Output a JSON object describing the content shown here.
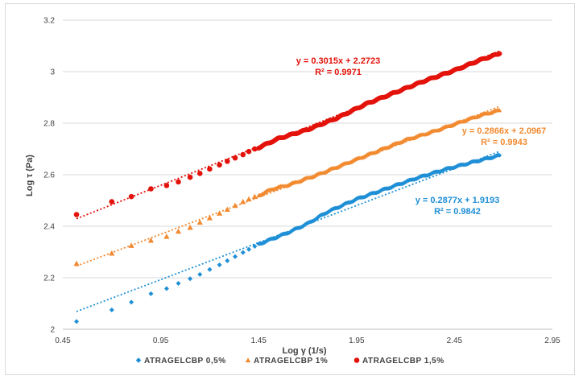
{
  "chart_data": {
    "type": "scatter",
    "title": "",
    "xlabel": "Log γ (1/s)",
    "ylabel": "Log τ (Pa)",
    "xlim": [
      0.45,
      2.95
    ],
    "ylim": [
      2.0,
      3.2
    ],
    "x_ticks": [
      "0.45",
      "0.95",
      "1.45",
      "1.95",
      "2.45",
      "2.95"
    ],
    "y_ticks": [
      "2",
      "2.2",
      "2.4",
      "2.6",
      "2.8",
      "3",
      "3.2"
    ],
    "legend_position": "bottom",
    "series": [
      {
        "name": "ATRAGELCBP 0,5%",
        "color": "#1f8fd6",
        "marker": "diamond",
        "trend": {
          "slope": 0.2877,
          "intercept": 1.9193,
          "x_range": [
            0.52,
            2.68
          ]
        },
        "equation": "y = 0.2877x + 1.9193",
        "r2": "R² = 0.9842",
        "points": [
          [
            0.52,
            2.03
          ],
          [
            0.7,
            2.075
          ],
          [
            0.8,
            2.105
          ],
          [
            0.9,
            2.138
          ],
          [
            0.98,
            2.158
          ],
          [
            1.04,
            2.178
          ],
          [
            1.1,
            2.196
          ],
          [
            1.15,
            2.213
          ],
          [
            1.2,
            2.232
          ],
          [
            1.25,
            2.25
          ],
          [
            1.29,
            2.266
          ],
          [
            1.33,
            2.282
          ],
          [
            1.37,
            2.298
          ],
          [
            1.4,
            2.31
          ],
          [
            1.43,
            2.322
          ]
        ],
        "dense": [
          [
            1.45,
            2.33
          ],
          [
            1.6,
            2.375
          ],
          [
            1.7,
            2.41
          ],
          [
            1.8,
            2.455
          ],
          [
            1.95,
            2.505
          ],
          [
            2.1,
            2.545
          ],
          [
            2.25,
            2.585
          ],
          [
            2.4,
            2.62
          ],
          [
            2.55,
            2.65
          ],
          [
            2.68,
            2.675
          ]
        ]
      },
      {
        "name": "ATRAGELCBP  1%",
        "color": "#f28a30",
        "marker": "triangle",
        "trend": {
          "slope": 0.2866,
          "intercept": 2.0967,
          "x_range": [
            0.52,
            2.68
          ]
        },
        "equation": "y = 0.2866x + 2.0967",
        "r2": "R² = 0.9943",
        "points": [
          [
            0.52,
            2.255
          ],
          [
            0.7,
            2.295
          ],
          [
            0.8,
            2.325
          ],
          [
            0.9,
            2.345
          ],
          [
            0.98,
            2.36
          ],
          [
            1.04,
            2.38
          ],
          [
            1.1,
            2.395
          ],
          [
            1.15,
            2.415
          ],
          [
            1.2,
            2.432
          ],
          [
            1.25,
            2.45
          ],
          [
            1.29,
            2.465
          ],
          [
            1.33,
            2.48
          ],
          [
            1.37,
            2.495
          ],
          [
            1.4,
            2.505
          ],
          [
            1.43,
            2.515
          ]
        ],
        "dense": [
          [
            1.45,
            2.52
          ],
          [
            1.52,
            2.545
          ],
          [
            1.6,
            2.56
          ],
          [
            1.75,
            2.6
          ],
          [
            1.9,
            2.645
          ],
          [
            2.05,
            2.69
          ],
          [
            2.2,
            2.735
          ],
          [
            2.35,
            2.77
          ],
          [
            2.5,
            2.81
          ],
          [
            2.6,
            2.835
          ],
          [
            2.68,
            2.85
          ]
        ]
      },
      {
        "name": "ATRAGELCBP 1,5%",
        "color": "#e3120b",
        "marker": "circle",
        "trend": {
          "slope": 0.3015,
          "intercept": 2.2723,
          "x_range": [
            0.52,
            2.68
          ]
        },
        "equation": "y = 0.3015x + 2.2723",
        "r2": "R² = 0.9971",
        "points": [
          [
            0.52,
            2.445
          ],
          [
            0.7,
            2.495
          ],
          [
            0.8,
            2.515
          ],
          [
            0.9,
            2.545
          ],
          [
            0.98,
            2.558
          ],
          [
            1.04,
            2.572
          ],
          [
            1.1,
            2.59
          ],
          [
            1.15,
            2.605
          ],
          [
            1.2,
            2.622
          ],
          [
            1.25,
            2.638
          ],
          [
            1.29,
            2.652
          ],
          [
            1.33,
            2.665
          ],
          [
            1.37,
            2.678
          ],
          [
            1.4,
            2.69
          ],
          [
            1.43,
            2.7
          ]
        ],
        "dense": [
          [
            1.45,
            2.705
          ],
          [
            1.55,
            2.74
          ],
          [
            1.7,
            2.775
          ],
          [
            1.85,
            2.82
          ],
          [
            2.0,
            2.875
          ],
          [
            2.15,
            2.92
          ],
          [
            2.3,
            2.965
          ],
          [
            2.45,
            3.005
          ],
          [
            2.58,
            3.045
          ],
          [
            2.68,
            3.07
          ]
        ]
      }
    ]
  }
}
